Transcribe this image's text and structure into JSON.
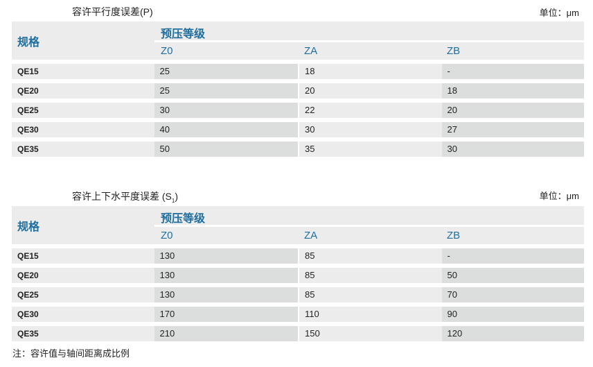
{
  "tables": [
    {
      "title": "容许平行度误差(P)",
      "unit": "单位：μm",
      "spec_header": "规格",
      "group_header": "预压等级",
      "columns": [
        "Z0",
        "ZA",
        "ZB"
      ],
      "rows": [
        [
          "QE15",
          "25",
          "18",
          "-"
        ],
        [
          "QE20",
          "25",
          "20",
          "18"
        ],
        [
          "QE25",
          "30",
          "22",
          "20"
        ],
        [
          "QE30",
          "40",
          "30",
          "27"
        ],
        [
          "QE35",
          "50",
          "35",
          "30"
        ]
      ]
    },
    {
      "title": "容许上下水平度误差 (S",
      "title_sub": "1",
      "title_end": ")",
      "unit": "单位：μm",
      "spec_header": "规格",
      "group_header": "预压等级",
      "columns": [
        "Z0",
        "ZA",
        "ZB"
      ],
      "rows": [
        [
          "QE15",
          "130",
          "85",
          "-"
        ],
        [
          "QE20",
          "130",
          "85",
          "50"
        ],
        [
          "QE25",
          "130",
          "85",
          "70"
        ],
        [
          "QE30",
          "170",
          "110",
          "90"
        ],
        [
          "QE35",
          "210",
          "150",
          "120"
        ]
      ]
    }
  ],
  "note": "注：容许值与轴间距离成比例"
}
